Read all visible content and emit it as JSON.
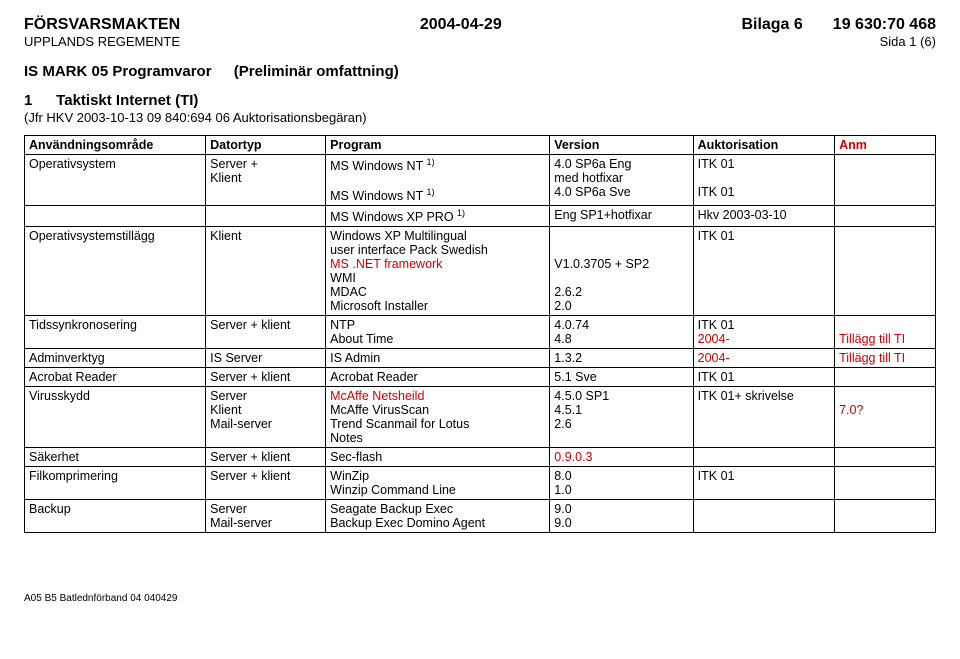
{
  "header": {
    "org_top": "FÖRSVARSMAKTEN",
    "date": "2004-04-29",
    "bilaga": "Bilaga 6",
    "docnum": "19 630:70 468",
    "org_sub": "UPPLANDS REGEMENTE",
    "page": "Sida 1 (6)"
  },
  "title": {
    "main": "IS MARK 05 Programvaror",
    "paren": "(Preliminär omfattning)"
  },
  "section": {
    "num": "1",
    "name": "Taktiskt Internet  (TI)",
    "subnote": "(Jfr HKV 2003-10-13 09 840:694 06 Auktorisationsbegäran)"
  },
  "columns": {
    "c0": "Användningsområde",
    "c1": "Datortyp",
    "c2": "Program",
    "c3": "Version",
    "c4": "Auktorisation",
    "c5": "Anm"
  },
  "rows": {
    "r0": {
      "area": "Operativsystem",
      "dtype": "Server +\nKlient",
      "prog_l1": "MS Windows NT ",
      "prog_l1_sup": "1)",
      "prog_l2": "",
      "prog_l3": "MS Windows NT ",
      "prog_l3_sup": "1)",
      "ver_l1": "4.0 SP6a Eng",
      "ver_l2": "med hotfixar",
      "ver_l3": "4.0 SP6a Sve",
      "auth_l1": "ITK 01",
      "auth_l3": "ITK 01"
    },
    "r1": {
      "prog": "MS Windows XP PRO ",
      "prog_sup": "1)",
      "ver": "Eng SP1+hotfixar",
      "auth": "Hkv 2003-03-10"
    },
    "r2": {
      "area": "Operativsystemstillägg",
      "dtype": "Klient",
      "prog_l1": "Windows XP Multilingual",
      "prog_l2": "user interface Pack Swedish",
      "prog_l3": "MS .NET framework",
      "prog_l4": "WMI",
      "prog_l5": "MDAC",
      "prog_l6": "Microsoft Installer",
      "ver_l3": "V1.0.3705 + SP2",
      "ver_l5": "2.6.2",
      "ver_l6": "2.0",
      "auth_l1": "ITK 01"
    },
    "r3": {
      "area": "Tidssynkronosering",
      "dtype": "Server + klient",
      "prog_l1": "NTP",
      "prog_l2": "About Time",
      "ver_l1": "4.0.74",
      "ver_l2": "4.8",
      "auth_l1": "ITK 01",
      "auth_l2": "2004-",
      "anm_l2": "Tillägg till TI"
    },
    "r4": {
      "area": "Adminverktyg",
      "dtype": "IS Server",
      "prog": "IS Admin",
      "ver": "1.3.2",
      "auth": "2004-",
      "anm": "Tillägg till TI"
    },
    "r5": {
      "area": "Acrobat Reader",
      "dtype": "Server + klient",
      "prog": "Acrobat Reader",
      "ver": "5.1 Sve",
      "auth": "ITK 01"
    },
    "r6": {
      "area": "Virusskydd",
      "dtype_l1": "Server",
      "dtype_l2": "Klient",
      "dtype_l3": "Mail-server",
      "prog_l1": "McAffe Netsheild",
      "prog_l2": "McAffe VirusScan",
      "prog_l3": "Trend Scanmail for Lotus",
      "prog_l4": "Notes",
      "ver_l1": "4.5.0 SP1",
      "ver_l2": "4.5.1",
      "ver_l3": "2.6",
      "auth_l1": "ITK 01+ skrivelse",
      "anm_l2": "7.0?"
    },
    "r7": {
      "area": "Säkerhet",
      "dtype": "Server + klient",
      "prog": "Sec-flash",
      "ver": "0.9.0.3"
    },
    "r8": {
      "area": "Filkomprimering",
      "dtype": "Server + klient",
      "prog_l1": "WinZip",
      "prog_l2": "Winzip Command Line",
      "ver_l1": "8.0",
      "ver_l2": "1.0",
      "auth_l1": "ITK 01"
    },
    "r9": {
      "area": "Backup",
      "dtype_l1": "Server",
      "dtype_l2": "Mail-server",
      "prog_l1": "Seagate Backup Exec",
      "prog_l2": "Backup Exec Domino Agent",
      "ver_l1": "9.0",
      "ver_l2": "9.0"
    }
  },
  "footer": "A05 B5 Batlednförband 04 040429"
}
